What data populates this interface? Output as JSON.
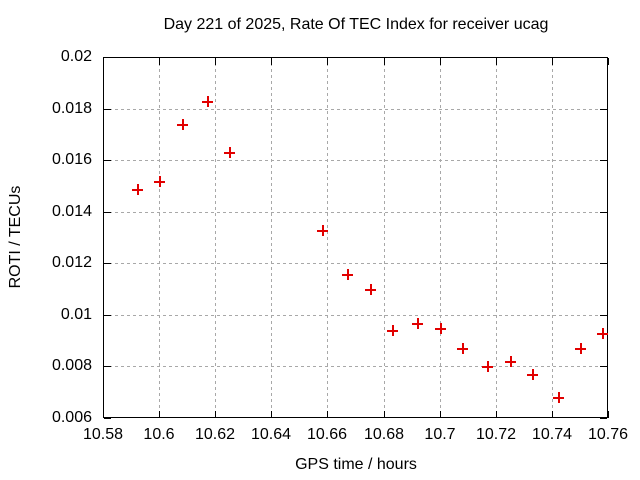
{
  "chart_data": {
    "type": "scatter",
    "title": "Day 221 of 2025, Rate Of TEC Index for receiver ucag",
    "xlabel": "GPS time / hours",
    "ylabel": "ROTI / TECUs",
    "xlim": [
      10.58,
      10.76
    ],
    "ylim": [
      0.006,
      0.02
    ],
    "x_ticks": {
      "values": [
        10.58,
        10.6,
        10.62,
        10.64,
        10.66,
        10.68,
        10.7,
        10.72,
        10.74,
        10.76
      ],
      "labels": [
        "10.58",
        "10.6",
        "10.62",
        "10.64",
        "10.66",
        "10.68",
        "10.7",
        "10.72",
        "10.74",
        "10.76"
      ]
    },
    "y_ticks": {
      "values": [
        0.006,
        0.008,
        0.01,
        0.012,
        0.014,
        0.016,
        0.018,
        0.02
      ],
      "labels": [
        "0.006",
        "0.008",
        "0.01",
        "0.012",
        "0.014",
        "0.016",
        "0.018",
        "0.02"
      ]
    },
    "grid": true,
    "legend": "none",
    "marker": {
      "shape": "plus",
      "color": "#e10000",
      "size": 11
    },
    "series": [
      {
        "x": [
          10.592,
          10.6,
          10.608,
          10.617,
          10.625,
          10.658,
          10.667,
          10.675,
          10.683,
          10.692,
          10.7,
          10.708,
          10.717,
          10.725,
          10.733,
          10.742,
          10.75,
          10.758
        ],
        "y": [
          0.0149,
          0.0152,
          0.0174,
          0.0183,
          0.0163,
          0.0133,
          0.0116,
          0.011,
          0.0094,
          0.0097,
          0.0095,
          0.0087,
          0.008,
          0.0082,
          0.0077,
          0.0068,
          0.0087,
          0.0093
        ]
      }
    ]
  },
  "colors": {
    "background": "#ffffff",
    "frame": "#000000",
    "grid": "#a8a8a8",
    "marker": "#e10000",
    "text": "#000000"
  }
}
